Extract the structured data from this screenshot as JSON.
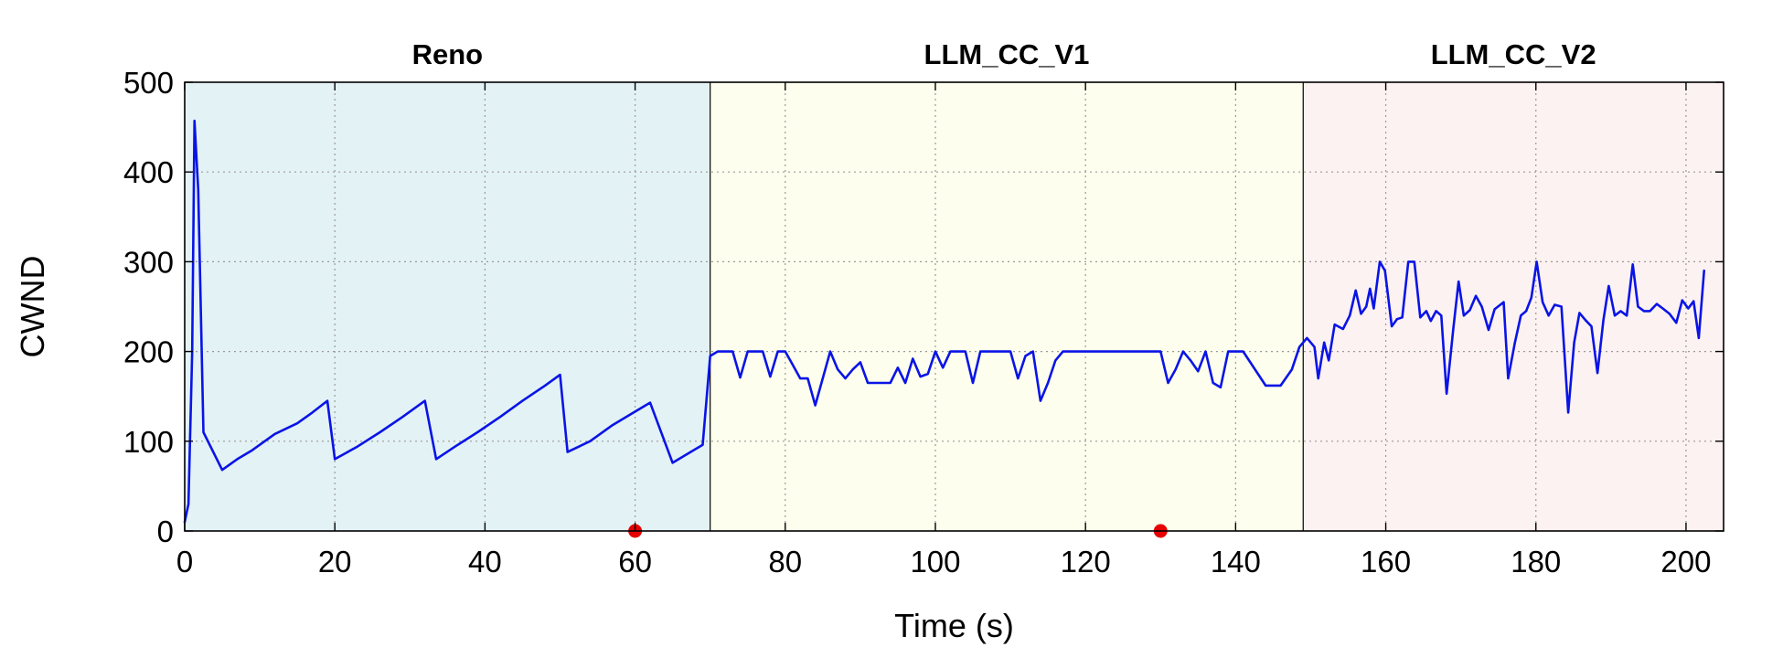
{
  "chart_data": {
    "type": "line",
    "xlabel": "Time (s)",
    "ylabel": "CWND",
    "xlim": [
      0,
      205
    ],
    "ylim": [
      0,
      500
    ],
    "xticks": [
      0,
      20,
      40,
      60,
      80,
      100,
      120,
      140,
      160,
      180,
      200
    ],
    "yticks": [
      0,
      100,
      200,
      300,
      400,
      500
    ],
    "x_tick_labels": [
      "0",
      "20",
      "40",
      "60",
      "80",
      "100",
      "120",
      "140",
      "160",
      "180",
      "200"
    ],
    "y_tick_labels": [
      "0",
      "100",
      "200",
      "300",
      "400",
      "500"
    ],
    "grid": true,
    "regions": [
      {
        "label": "Reno",
        "x_start": 0,
        "x_end": 70,
        "color": "#e3f2f5"
      },
      {
        "label": "LLM_CC_V1",
        "x_start": 70,
        "x_end": 149,
        "color": "#fdfeed"
      },
      {
        "label": "LLM_CC_V2",
        "x_start": 149,
        "x_end": 205,
        "color": "#fcf2f1"
      }
    ],
    "series": [
      {
        "color": "#0a14e6",
        "points": [
          [
            0,
            10
          ],
          [
            0.5,
            30
          ],
          [
            1,
            200
          ],
          [
            1.3,
            457
          ],
          [
            1.8,
            380
          ],
          [
            2.5,
            110
          ],
          [
            5,
            68
          ],
          [
            7,
            80
          ],
          [
            9,
            90
          ],
          [
            12,
            108
          ],
          [
            15,
            120
          ],
          [
            17,
            132
          ],
          [
            19,
            145
          ],
          [
            20,
            80
          ],
          [
            23,
            94
          ],
          [
            26,
            110
          ],
          [
            29,
            127
          ],
          [
            32,
            145
          ],
          [
            33.5,
            80
          ],
          [
            36,
            94
          ],
          [
            39,
            110
          ],
          [
            42,
            127
          ],
          [
            45,
            145
          ],
          [
            48,
            162
          ],
          [
            50,
            174
          ],
          [
            51,
            88
          ],
          [
            54,
            100
          ],
          [
            57,
            118
          ],
          [
            60,
            133
          ],
          [
            62,
            143
          ],
          [
            65,
            76
          ],
          [
            69,
            96
          ],
          [
            70,
            195
          ],
          [
            71,
            200
          ],
          [
            73,
            200
          ],
          [
            74,
            171
          ],
          [
            75,
            200
          ],
          [
            77,
            200
          ],
          [
            78,
            172
          ],
          [
            79,
            200
          ],
          [
            80,
            200
          ],
          [
            81,
            185
          ],
          [
            82,
            170
          ],
          [
            83,
            170
          ],
          [
            84,
            140
          ],
          [
            86,
            200
          ],
          [
            87,
            180
          ],
          [
            88,
            170
          ],
          [
            89,
            180
          ],
          [
            90,
            188
          ],
          [
            91,
            165
          ],
          [
            94,
            165
          ],
          [
            95,
            182
          ],
          [
            96,
            165
          ],
          [
            97,
            192
          ],
          [
            98,
            172
          ],
          [
            99,
            175
          ],
          [
            100,
            200
          ],
          [
            101,
            182
          ],
          [
            102,
            200
          ],
          [
            104,
            200
          ],
          [
            105,
            165
          ],
          [
            106,
            200
          ],
          [
            110,
            200
          ],
          [
            111,
            170
          ],
          [
            112,
            195
          ],
          [
            113,
            200
          ],
          [
            114,
            145
          ],
          [
            115,
            165
          ],
          [
            116,
            190
          ],
          [
            117,
            200
          ],
          [
            130,
            200
          ],
          [
            131,
            165
          ],
          [
            132,
            180
          ],
          [
            133,
            200
          ],
          [
            134,
            190
          ],
          [
            135,
            178
          ],
          [
            136,
            200
          ],
          [
            137,
            165
          ],
          [
            138,
            160
          ],
          [
            139,
            200
          ],
          [
            141,
            200
          ],
          [
            144,
            162
          ],
          [
            146,
            162
          ],
          [
            147.5,
            180
          ],
          [
            148.5,
            205
          ],
          [
            149.5,
            215
          ],
          [
            150.5,
            205
          ],
          [
            151,
            170
          ],
          [
            151.8,
            210
          ],
          [
            152.4,
            190
          ],
          [
            153.2,
            230
          ],
          [
            154.3,
            225
          ],
          [
            155.2,
            240
          ],
          [
            156,
            268
          ],
          [
            156.7,
            242
          ],
          [
            157.4,
            250
          ],
          [
            157.9,
            270
          ],
          [
            158.4,
            248
          ],
          [
            159.2,
            300
          ],
          [
            159.9,
            290
          ],
          [
            160.8,
            228
          ],
          [
            161.5,
            236
          ],
          [
            162.2,
            238
          ],
          [
            163,
            300
          ],
          [
            163.8,
            300
          ],
          [
            164.6,
            238
          ],
          [
            165.4,
            245
          ],
          [
            166,
            234
          ],
          [
            166.7,
            245
          ],
          [
            167.4,
            240
          ],
          [
            168.1,
            153
          ],
          [
            169,
            225
          ],
          [
            169.7,
            278
          ],
          [
            170.4,
            240
          ],
          [
            171.2,
            246
          ],
          [
            172,
            262
          ],
          [
            172.8,
            250
          ],
          [
            173.7,
            224
          ],
          [
            174.5,
            247
          ],
          [
            175.7,
            255
          ],
          [
            176.3,
            170
          ],
          [
            177.2,
            210
          ],
          [
            178,
            240
          ],
          [
            178.7,
            245
          ],
          [
            179.4,
            260
          ],
          [
            180.1,
            300
          ],
          [
            180.9,
            255
          ],
          [
            181.7,
            240
          ],
          [
            182.5,
            252
          ],
          [
            183.4,
            250
          ],
          [
            184.3,
            132
          ],
          [
            185.1,
            210
          ],
          [
            185.8,
            243
          ],
          [
            186.6,
            235
          ],
          [
            187.4,
            228
          ],
          [
            188.2,
            176
          ],
          [
            189,
            235
          ],
          [
            189.7,
            273
          ],
          [
            190.5,
            240
          ],
          [
            191.3,
            245
          ],
          [
            192.1,
            240
          ],
          [
            192.9,
            297
          ],
          [
            193.6,
            250
          ],
          [
            194.4,
            245
          ],
          [
            195.2,
            245
          ],
          [
            196.1,
            253
          ],
          [
            196.9,
            248
          ],
          [
            197.8,
            242
          ],
          [
            198.7,
            232
          ],
          [
            199.5,
            257
          ],
          [
            200.3,
            248
          ],
          [
            201,
            256
          ],
          [
            201.7,
            215
          ],
          [
            202.4,
            290
          ]
        ]
      }
    ],
    "markers": [
      {
        "x": 60,
        "y": 0,
        "color": "#e60000"
      },
      {
        "x": 130,
        "y": 0,
        "color": "#e60000"
      }
    ]
  }
}
